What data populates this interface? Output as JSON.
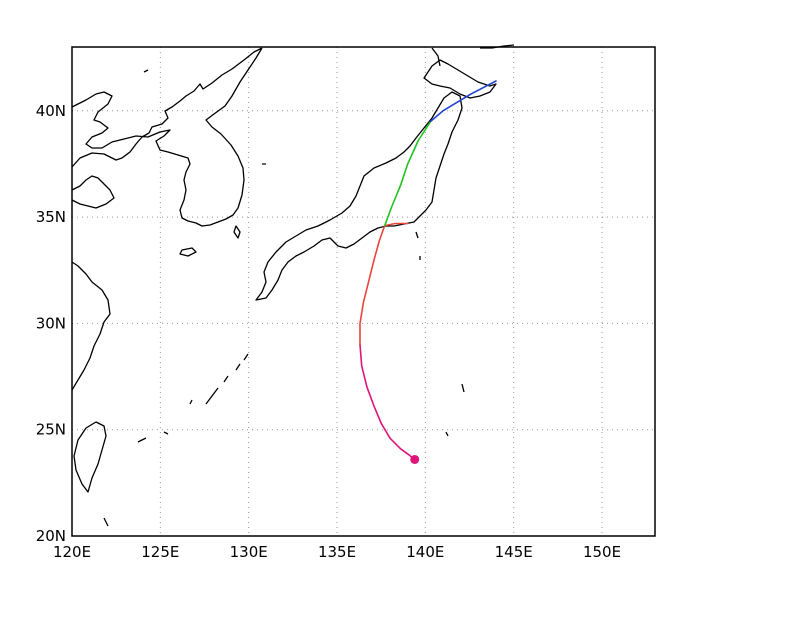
{
  "map": {
    "lon_range": [
      120,
      153
    ],
    "lat_range": [
      20,
      43
    ],
    "lon_ticks": [
      120,
      125,
      130,
      135,
      140,
      145,
      150
    ],
    "lat_ticks": [
      20,
      25,
      30,
      35,
      40
    ],
    "lon_labels": [
      "120E",
      "125E",
      "130E",
      "135E",
      "140E",
      "145E",
      "150E"
    ],
    "lat_labels": [
      "20N",
      "25N",
      "30N",
      "35N",
      "40N"
    ],
    "grid": true
  },
  "track": {
    "start_marker_color": "#e0147a",
    "segments": [
      {
        "color": "#e0147a",
        "points": [
          [
            139.4,
            23.6
          ],
          [
            139.1,
            23.8
          ],
          [
            138.6,
            24.1
          ],
          [
            138.0,
            24.6
          ],
          [
            137.5,
            25.3
          ],
          [
            137.1,
            26.1
          ],
          [
            136.7,
            27.0
          ],
          [
            136.4,
            28.0
          ],
          [
            136.3,
            29.0
          ]
        ]
      },
      {
        "color": "#e8463c",
        "points": [
          [
            136.3,
            29.0
          ],
          [
            136.3,
            30.0
          ],
          [
            136.5,
            31.0
          ],
          [
            136.8,
            32.0
          ],
          [
            137.1,
            33.0
          ],
          [
            137.4,
            33.9
          ],
          [
            137.7,
            34.6
          ],
          [
            138.3,
            34.7
          ],
          [
            139.0,
            34.7
          ]
        ]
      },
      {
        "color": "#22c022",
        "points": [
          [
            137.7,
            34.6
          ],
          [
            138.1,
            35.5
          ],
          [
            138.6,
            36.5
          ],
          [
            139.0,
            37.5
          ],
          [
            139.6,
            38.6
          ],
          [
            140.3,
            39.5
          ]
        ]
      },
      {
        "color": "#2040d0",
        "points": [
          [
            140.3,
            39.5
          ],
          [
            141.0,
            40.0
          ],
          [
            141.8,
            40.4
          ],
          [
            142.6,
            40.8
          ],
          [
            143.3,
            41.1
          ],
          [
            144.0,
            41.4
          ]
        ]
      }
    ]
  }
}
